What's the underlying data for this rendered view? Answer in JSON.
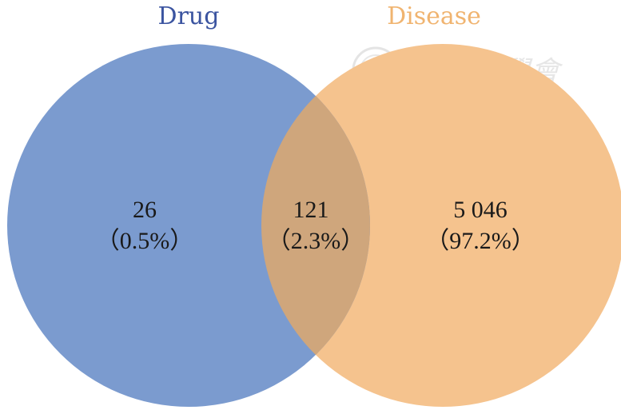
{
  "chart_data": {
    "type": "venn",
    "sets": [
      {
        "name": "Drug",
        "color": "#7b9bcf",
        "label_color": "#3b54a0"
      },
      {
        "name": "Disease",
        "color": "#f5c38e",
        "label_color": "#f0b470"
      }
    ],
    "overlap_color": "#cfa67c",
    "regions": [
      {
        "id": "drug_only",
        "sets": [
          "Drug"
        ],
        "count": "26",
        "percent": "（0.5%）"
      },
      {
        "id": "both",
        "sets": [
          "Drug",
          "Disease"
        ],
        "count": "121",
        "percent": "（2.3%）"
      },
      {
        "id": "disease_only",
        "sets": [
          "Disease"
        ],
        "count": "5 046",
        "percent": "（97.2%）"
      }
    ]
  },
  "watermark": {
    "text": "中華醫學會"
  }
}
